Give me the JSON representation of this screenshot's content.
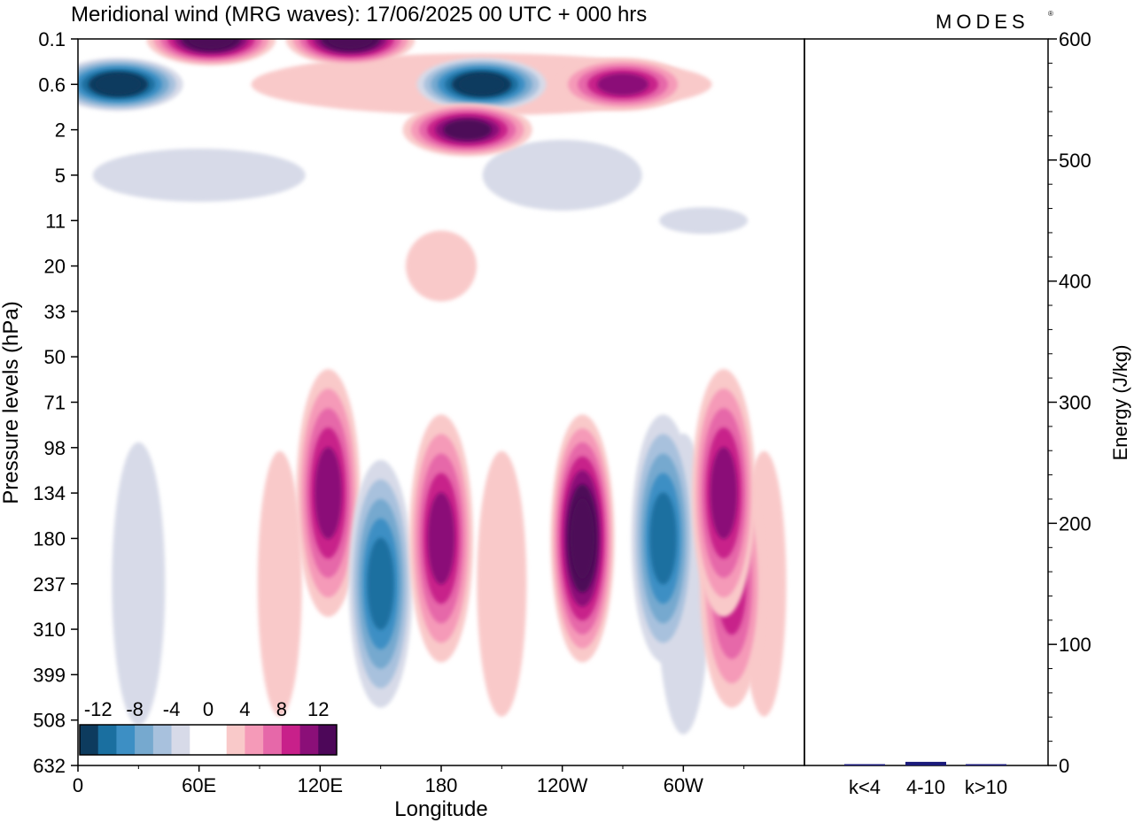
{
  "chart_data": [
    {
      "type": "heatmap",
      "title": "Meridional wind (MRG waves):  17/06/2025  00 UTC  + 000 hrs",
      "xlabel": "Longitude",
      "ylabel": "Pressure levels (hPa)",
      "x_ticks": [
        "0",
        "60E",
        "120E",
        "180",
        "120W",
        "60W"
      ],
      "y_ticks": [
        "0.1",
        "0.6",
        "2",
        "5",
        "11",
        "20",
        "33",
        "50",
        "71",
        "98",
        "134",
        "180",
        "237",
        "310",
        "399",
        "508",
        "632"
      ],
      "colorbar": {
        "tick_labels": [
          "-12",
          "-8",
          "-4",
          "0",
          "4",
          "8",
          "12"
        ],
        "colors": [
          "#0d3b5e",
          "#1a6fa0",
          "#3d8fc4",
          "#76a9cf",
          "#a8c1dd",
          "#d7dae8",
          "#ffffff",
          "#ffffff",
          "#f9c9c9",
          "#f59ab8",
          "#e668a9",
          "#c8208a",
          "#8b0f78",
          "#4d0759"
        ]
      },
      "features": [
        {
          "lon": 20,
          "level": "0.6",
          "value": -16
        },
        {
          "lon": 66,
          "level": "0.1",
          "value": 14
        },
        {
          "lon": 135,
          "level": "0.1",
          "value": 15
        },
        {
          "lon": 200,
          "level": "0.6",
          "value": -14
        },
        {
          "lon": 193,
          "level": "2",
          "value": 12
        },
        {
          "lon": 270,
          "level": "0.6",
          "value": 10
        },
        {
          "lon": 124,
          "level": "134",
          "value": 9
        },
        {
          "lon": 150,
          "level": "237",
          "value": -10
        },
        {
          "lon": 180,
          "level": "180",
          "value": 10
        },
        {
          "lon": 250,
          "level": "180",
          "value": 14
        },
        {
          "lon": 290,
          "level": "180",
          "value": -10
        },
        {
          "lon": 324,
          "level": "237",
          "value": 8
        },
        {
          "lon": 320,
          "level": "134",
          "value": 9
        }
      ]
    },
    {
      "type": "bar",
      "ylabel": "Energy (J/kg)",
      "categories": [
        "k<4",
        "4-10",
        "k>10"
      ],
      "values": [
        0.5,
        3,
        0.3
      ],
      "ylim": [
        0,
        600
      ],
      "y_ticks": [
        "0",
        "100",
        "200",
        "300",
        "400",
        "500",
        "600"
      ]
    }
  ],
  "brand": "MODES",
  "brand_mark": "®"
}
